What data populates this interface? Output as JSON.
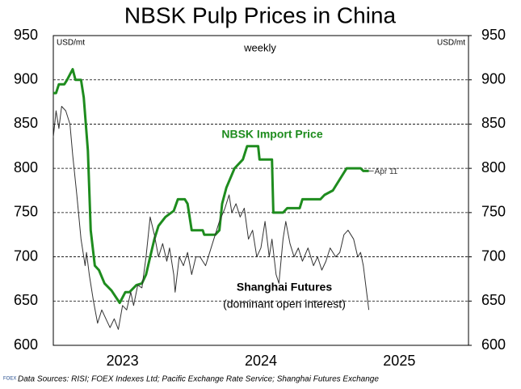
{
  "chart_data": {
    "type": "line",
    "title": "NBSK Pulp Prices in China",
    "subtitle": "weekly",
    "y_label": "USD/mt",
    "y2_label": "USD/mt",
    "xlim": [
      2023,
      2026
    ],
    "categories": [
      "2023",
      "2024",
      "2025"
    ],
    "ylim": [
      600,
      950
    ],
    "yticks": [
      600,
      650,
      700,
      750,
      800,
      850,
      900,
      950
    ],
    "y2lim": [
      600,
      950
    ],
    "y2ticks": [
      600,
      650,
      700,
      750,
      800,
      850,
      900,
      950
    ],
    "grid": true,
    "series": [
      {
        "name": "NBSK Import Price",
        "color": "#1e8c1e",
        "end_label": "Apr 11",
        "x": [
          2023.0,
          2023.02,
          2023.04,
          2023.08,
          2023.1,
          2023.14,
          2023.16,
          2023.2,
          2023.22,
          2023.25,
          2023.27,
          2023.3,
          2023.33,
          2023.37,
          2023.42,
          2023.48,
          2023.52,
          2023.55,
          2023.6,
          2023.64,
          2023.67,
          2023.7,
          2023.73,
          2023.76,
          2023.81,
          2023.87,
          2023.9,
          2023.95,
          2023.97,
          2024.0,
          2024.08,
          2024.09,
          2024.17,
          2024.2,
          2024.22,
          2024.25,
          2024.31,
          2024.37,
          2024.4,
          2024.48,
          2024.49,
          2024.58,
          2024.59,
          2024.66,
          2024.69,
          2024.78,
          2024.8,
          2024.93,
          2024.96,
          2025.02,
          2025.04,
          2025.12,
          2025.22,
          2025.24,
          2025.28
        ],
        "values": [
          885,
          885,
          895,
          895,
          900,
          912,
          900,
          900,
          880,
          820,
          730,
          690,
          685,
          670,
          662,
          648,
          660,
          660,
          668,
          670,
          680,
          700,
          720,
          735,
          745,
          752,
          765,
          765,
          760,
          730,
          730,
          725,
          725,
          730,
          760,
          778,
          800,
          810,
          825,
          825,
          810,
          810,
          750,
          750,
          755,
          755,
          765,
          765,
          770,
          775,
          780,
          800,
          800,
          797,
          797
        ]
      },
      {
        "name": "Shanghai Futures",
        "note": "(dominant open interest)",
        "color": "#333333",
        "x": [
          2023.0,
          2023.02,
          2023.04,
          2023.06,
          2023.09,
          2023.12,
          2023.14,
          2023.17,
          2023.2,
          2023.23,
          2023.24,
          2023.26,
          2023.29,
          2023.32,
          2023.35,
          2023.38,
          2023.41,
          2023.44,
          2023.47,
          2023.5,
          2023.53,
          2023.56,
          2023.58,
          2023.61,
          2023.64,
          2023.67,
          2023.7,
          2023.73,
          2023.76,
          2023.79,
          2023.82,
          2023.84,
          2023.87,
          2023.88,
          2023.91,
          2023.94,
          2023.97,
          2024.0,
          2024.03,
          2024.06,
          2024.1,
          2024.15,
          2024.2,
          2024.24,
          2024.27,
          2024.29,
          2024.32,
          2024.35,
          2024.38,
          2024.41,
          2024.44,
          2024.47,
          2024.5,
          2024.53,
          2024.56,
          2024.58,
          2024.61,
          2024.63,
          2024.66,
          2024.68,
          2024.71,
          2024.74,
          2024.77,
          2024.8,
          2024.84,
          2024.88,
          2024.91,
          2024.94,
          2024.97,
          2025.0,
          2025.04,
          2025.07,
          2025.1,
          2025.13,
          2025.17,
          2025.2,
          2025.22,
          2025.24,
          2025.26,
          2025.28
        ],
        "values": [
          835,
          865,
          845,
          870,
          865,
          850,
          815,
          770,
          720,
          690,
          705,
          680,
          650,
          625,
          640,
          630,
          620,
          630,
          618,
          645,
          640,
          660,
          645,
          668,
          665,
          700,
          745,
          725,
          700,
          715,
          695,
          710,
          680,
          660,
          700,
          690,
          705,
          680,
          700,
          700,
          690,
          715,
          740,
          755,
          770,
          750,
          760,
          745,
          755,
          720,
          730,
          700,
          710,
          740,
          700,
          720,
          680,
          670,
          720,
          740,
          715,
          700,
          710,
          695,
          710,
          690,
          700,
          685,
          695,
          710,
          700,
          705,
          725,
          730,
          720,
          700,
          705,
          690,
          665,
          640
        ]
      }
    ],
    "footer": "Data Sources: RISI; FOEX Indexes Ltd; Pacific Exchange Rate Service; Shanghai Futures Exchange",
    "logo": "FOEX"
  }
}
